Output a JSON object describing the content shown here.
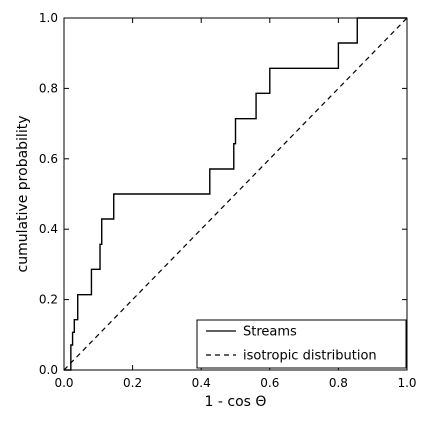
{
  "chart_data": {
    "type": "line",
    "xlabel": "1 - cos Θ",
    "ylabel": "cumulative probability",
    "xlim": [
      0.0,
      1.0
    ],
    "ylim": [
      0.0,
      1.0
    ],
    "x_ticks": [
      "0.0",
      "0.2",
      "0.4",
      "0.6",
      "0.8",
      "1.0"
    ],
    "y_ticks": [
      "0.0",
      "0.2",
      "0.4",
      "0.6",
      "0.8",
      "1.0"
    ],
    "grid": false,
    "legend_position": "bottom-right",
    "series": [
      {
        "name": "Streams",
        "style": "solid-step",
        "color": "#000000",
        "x": [
          0.0,
          0.02,
          0.02,
          0.025,
          0.025,
          0.03,
          0.03,
          0.04,
          0.04,
          0.08,
          0.08,
          0.105,
          0.105,
          0.11,
          0.11,
          0.145,
          0.145,
          0.425,
          0.425,
          0.495,
          0.495,
          0.5,
          0.5,
          0.56,
          0.56,
          0.6,
          0.6,
          0.8,
          0.8,
          0.855,
          0.855,
          1.0
        ],
        "y": [
          0.0,
          0.0,
          0.071,
          0.071,
          0.107,
          0.107,
          0.143,
          0.143,
          0.214,
          0.214,
          0.286,
          0.286,
          0.357,
          0.357,
          0.429,
          0.429,
          0.5,
          0.5,
          0.571,
          0.571,
          0.643,
          0.643,
          0.714,
          0.714,
          0.786,
          0.786,
          0.857,
          0.857,
          0.929,
          0.929,
          1.0,
          1.0
        ]
      },
      {
        "name": "isotropic distribution",
        "style": "dashed",
        "color": "#000000",
        "x": [
          0.0,
          1.0
        ],
        "y": [
          0.0,
          1.0
        ]
      }
    ]
  }
}
